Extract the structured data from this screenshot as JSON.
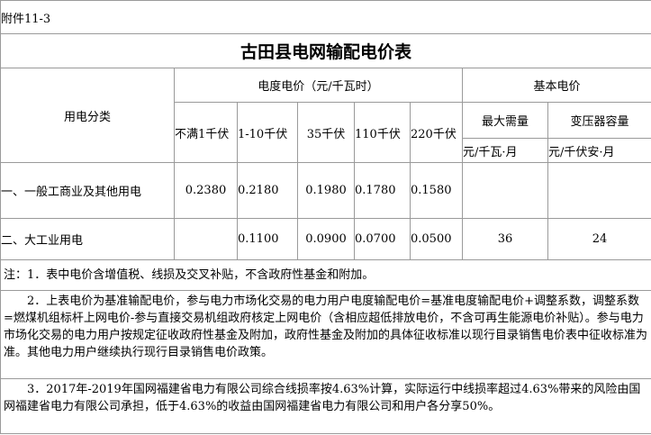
{
  "attachment": "附件11-3",
  "title": "古田县电网输配电价表",
  "headers": {
    "category": "用电分类",
    "energy_price": "电度电价（元/千瓦时）",
    "basic_price": "基本电价",
    "voltages": [
      "不满1千伏",
      "1-10千伏",
      "35千伏",
      "110千伏",
      "220千伏"
    ],
    "max_demand": "最大需量",
    "transformer": "变压器容量",
    "max_demand_unit": "元/千瓦·月",
    "transformer_unit": "元/千伏安·月"
  },
  "rows": [
    {
      "category": "一、一般工商业及其他用电",
      "prices": [
        "0.2380",
        "0.2180",
        "0.1980",
        "0.1780",
        "0.1580"
      ],
      "max_demand": "",
      "transformer": ""
    },
    {
      "category": "二、大工业用电",
      "prices": [
        "",
        "0.1100",
        "0.0900",
        "0.0700",
        "0.0500"
      ],
      "max_demand": "36",
      "transformer": "24"
    }
  ],
  "notes": [
    "注：1．表中电价含增值税、线损及交叉补贴，不含政府性基金和附加。",
    "2．上表电价为基准输配电价，参与电力市场化交易的电力用户电度输配电价=基准电度输配电价+调整系数，调整系数=燃煤机组标杆上网电价-参与直接交易机组政府核定上网电价（含相应超低排放电价，不含可再生能源电价补贴）。参与电力市场化交易的电力用户按规定征收政府性基金及附加，政府性基金及附加的具体征收标准以现行目录销售电价表中征收标准为准。其他电力用户继续执行现行目录销售电价政策。",
    "3．2017年-2019年国网福建省电力有限公司综合线损率按4.63%计算，实际运行中线损率超过4.63%带来的风险由国网福建省电力有限公司承担，低于4.63%的收益由国网福建省电力有限公司和用户各分享50%。"
  ]
}
